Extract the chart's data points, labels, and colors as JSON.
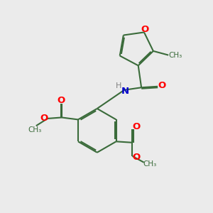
{
  "bg_color": "#ebebeb",
  "bond_color": "#3a6b3a",
  "bond_width": 1.5,
  "o_color": "#ff0000",
  "n_color": "#0000cc",
  "h_color": "#808080",
  "figsize": [
    3.0,
    3.0
  ],
  "dpi": 100,
  "xlim": [
    0,
    10
  ],
  "ylim": [
    0,
    10
  ]
}
